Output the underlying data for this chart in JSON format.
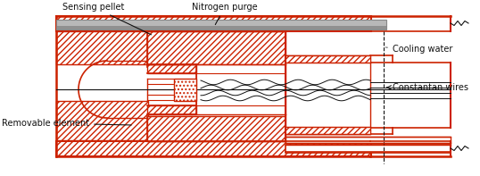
{
  "bg": "#ffffff",
  "red": "#cc2200",
  "gray_tube": "#b8b8b8",
  "gray_tube_dark": "#888888",
  "black": "#111111",
  "figsize": [
    5.38,
    1.97
  ],
  "dpi": 100,
  "labels": {
    "sensing_pellet": "Sensing pellet",
    "nitrogen_purge": "Nitrogen purge",
    "cooling_water": "Cooling water",
    "constantan_wires": "Constantan wires",
    "removable_element": "Removable element"
  },
  "fs": 7.0
}
